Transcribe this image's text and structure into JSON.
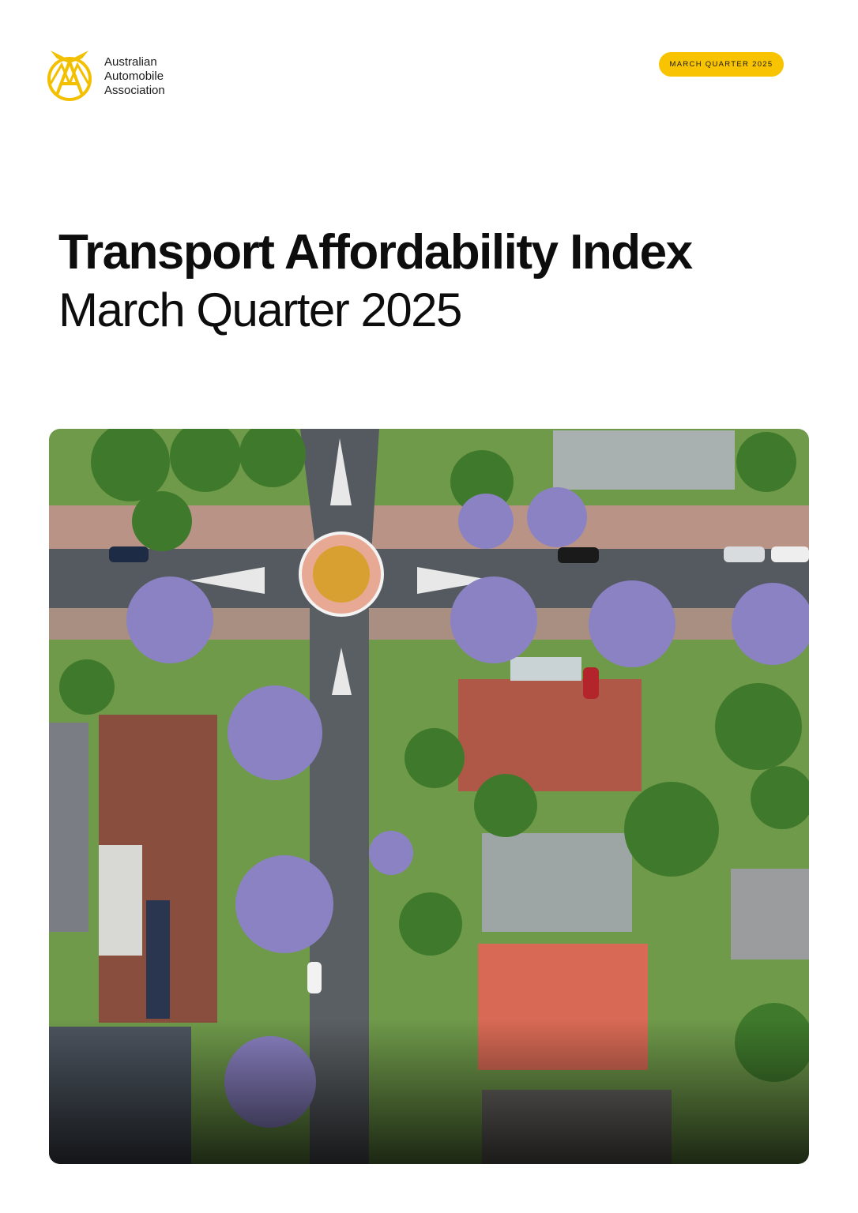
{
  "header": {
    "logo_lines": [
      "Australian",
      "Automobile",
      "Association"
    ],
    "badge": "MARCH QUARTER 2025"
  },
  "title": "Transport Affordability Index",
  "subtitle": "March Quarter 2025"
}
